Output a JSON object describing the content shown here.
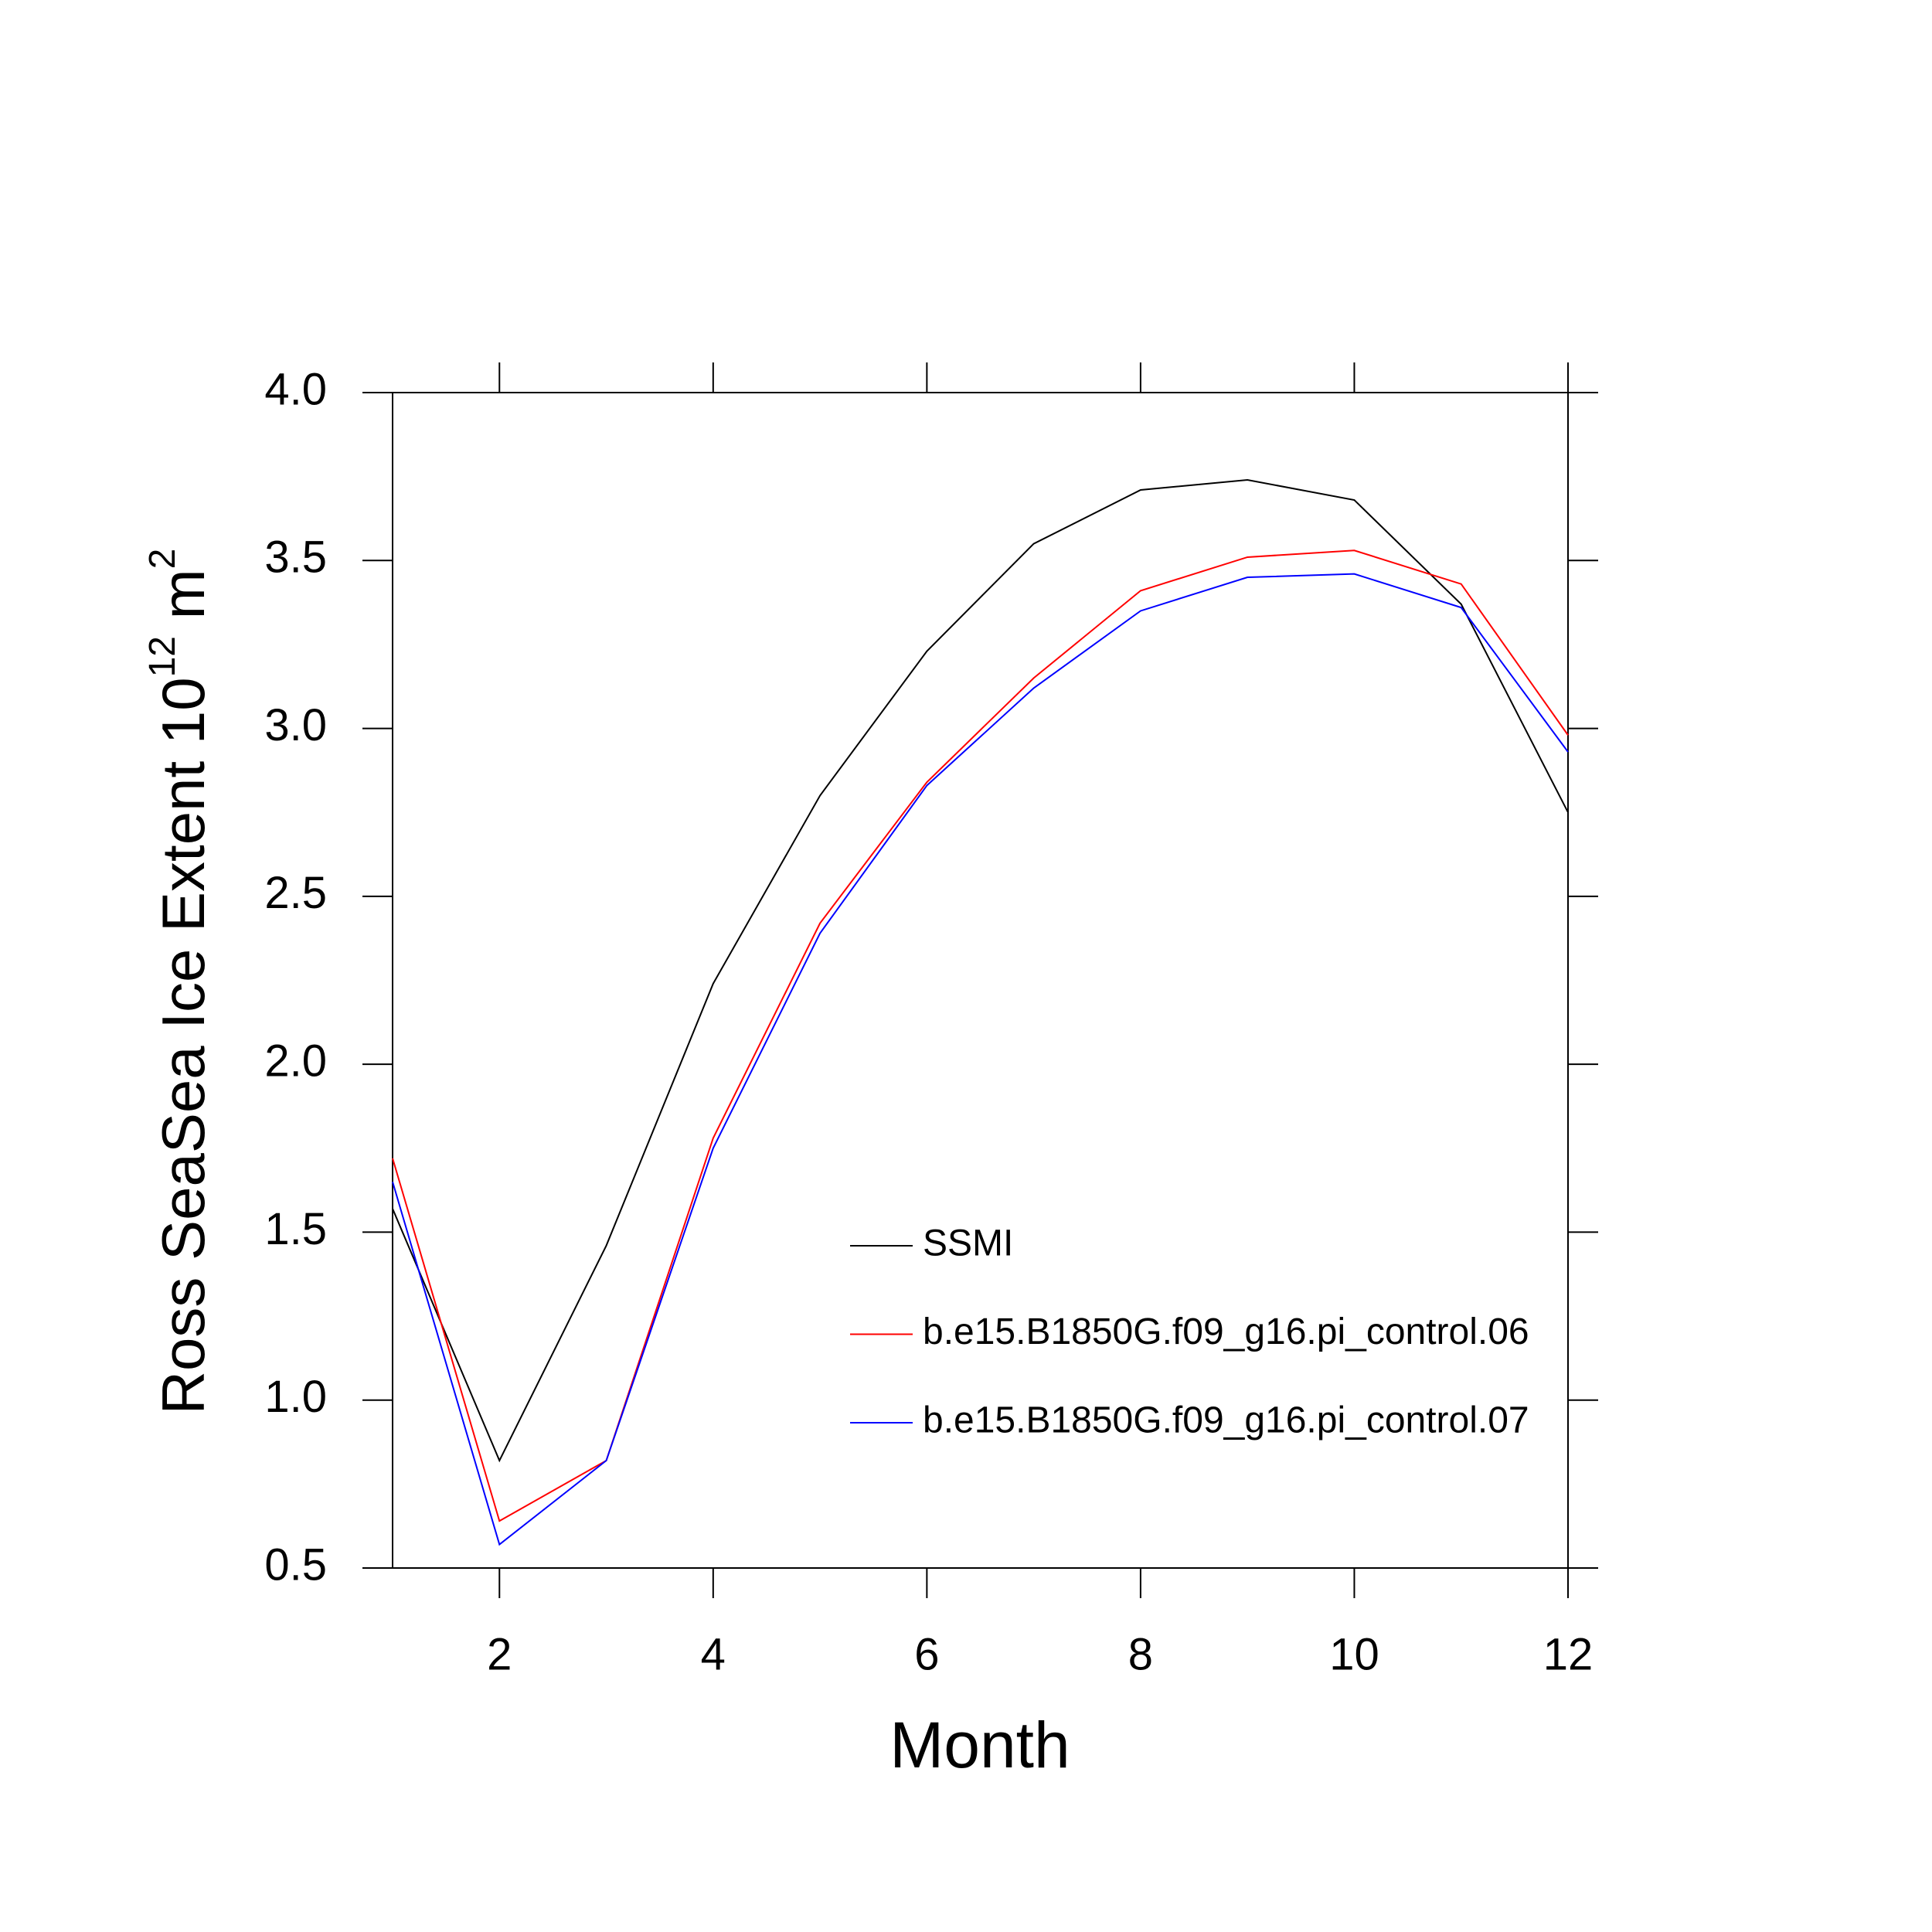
{
  "chart_data": {
    "type": "line",
    "xlabel": "Month",
    "ylabel": [
      "Ross SeaSea Ice Extent 10",
      "12",
      " m",
      "2"
    ],
    "x": [
      1,
      2,
      3,
      4,
      5,
      6,
      7,
      8,
      9,
      10,
      11,
      12
    ],
    "xlim": [
      1,
      12
    ],
    "xticks": [
      2,
      4,
      6,
      8,
      10,
      12
    ],
    "ylim": [
      0.5,
      4
    ],
    "yticks": [
      0.5,
      {
        "value": 1,
        "label": "1.0"
      },
      1.5,
      {
        "value": 2,
        "label": "2.0"
      },
      2.5,
      {
        "value": 3,
        "label": "3.0"
      },
      3.5,
      {
        "value": 4,
        "label": "4.0"
      }
    ],
    "series": [
      {
        "name": "SSMI",
        "color": "#000000",
        "values": [
          1.57,
          0.82,
          1.46,
          2.24,
          2.8,
          3.23,
          3.55,
          3.71,
          3.74,
          3.68,
          3.37,
          2.75
        ]
      },
      {
        "name": "b.e15.B1850G.f09_g16.pi_control.06",
        "color": "#ff0000",
        "values": [
          1.72,
          0.64,
          0.82,
          1.78,
          2.42,
          2.84,
          3.15,
          3.41,
          3.51,
          3.53,
          3.43,
          2.98
        ]
      },
      {
        "name": "b.e15.B1850G.f09_g16.pi_control.07",
        "color": "#0000ff",
        "values": [
          1.65,
          0.57,
          0.82,
          1.75,
          2.39,
          2.83,
          3.12,
          3.35,
          3.45,
          3.46,
          3.36,
          2.93
        ]
      }
    ]
  }
}
